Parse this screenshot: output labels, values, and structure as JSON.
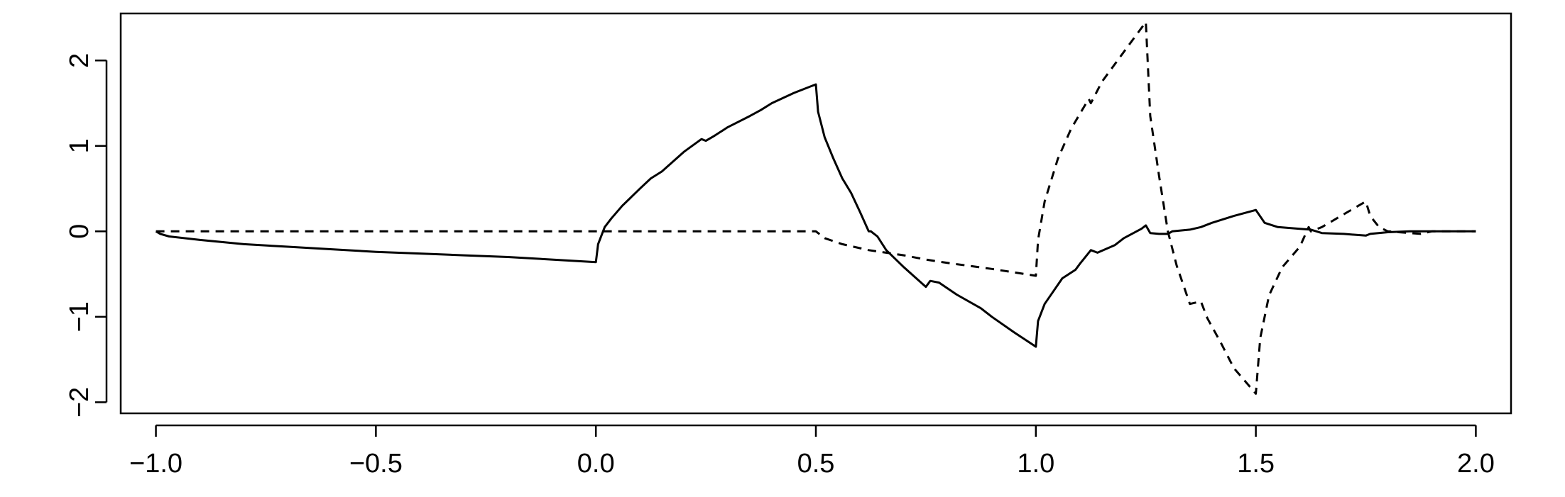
{
  "chart_data": {
    "type": "line",
    "title": "",
    "xlabel": "",
    "ylabel": "",
    "xlim": [
      -1.08,
      2.08
    ],
    "ylim": [
      -2.13,
      2.55
    ],
    "grid": false,
    "legend": "none",
    "xticks": [
      -1.0,
      -0.5,
      0.0,
      0.5,
      1.0,
      1.5,
      2.0
    ],
    "xtick_labels": [
      "−1.0",
      "−0.5",
      "0.0",
      "0.5",
      "1.0",
      "1.5",
      "2.0"
    ],
    "yticks": [
      -2,
      -1,
      0,
      1,
      2
    ],
    "ytick_labels": [
      "−2",
      "−1",
      "0",
      "1",
      "2"
    ],
    "series": [
      {
        "style": "solid",
        "color": "#000000",
        "x": [
          -1.0,
          -0.99,
          -0.97,
          -0.9,
          -0.8,
          -0.7,
          -0.6,
          -0.5,
          -0.4,
          -0.3,
          -0.2,
          -0.1,
          0.0,
          0.0,
          0.005,
          0.02,
          0.035,
          0.06,
          0.1,
          0.125,
          0.15,
          0.2,
          0.24,
          0.25,
          0.27,
          0.3,
          0.35,
          0.375,
          0.4,
          0.45,
          0.5,
          0.5,
          0.505,
          0.52,
          0.54,
          0.56,
          0.58,
          0.6,
          0.62,
          0.625,
          0.64,
          0.66,
          0.7,
          0.75,
          0.76,
          0.78,
          0.82,
          0.875,
          0.9,
          0.95,
          1.0,
          1.0,
          1.005,
          1.02,
          1.04,
          1.06,
          1.09,
          1.1,
          1.125,
          1.14,
          1.18,
          1.2,
          1.24,
          1.25,
          1.26,
          1.28,
          1.3,
          1.31,
          1.35,
          1.375,
          1.4,
          1.45,
          1.5,
          1.5,
          1.52,
          1.55,
          1.6,
          1.625,
          1.65,
          1.7,
          1.75,
          1.76,
          1.8,
          1.85,
          1.875,
          1.9,
          2.0
        ],
        "y": [
          0.0,
          -0.03,
          -0.06,
          -0.1,
          -0.15,
          -0.18,
          -0.21,
          -0.24,
          -0.26,
          -0.28,
          -0.3,
          -0.33,
          -0.36,
          -0.36,
          -0.15,
          0.05,
          0.15,
          0.3,
          0.5,
          0.62,
          0.7,
          0.93,
          1.08,
          1.06,
          1.12,
          1.22,
          1.35,
          1.42,
          1.5,
          1.62,
          1.72,
          1.72,
          1.4,
          1.1,
          0.85,
          0.62,
          0.45,
          0.23,
          0.0,
          0.0,
          -0.06,
          -0.22,
          -0.42,
          -0.65,
          -0.58,
          -0.6,
          -0.74,
          -0.9,
          -1.0,
          -1.18,
          -1.35,
          -1.35,
          -1.05,
          -0.85,
          -0.7,
          -0.55,
          -0.45,
          -0.38,
          -0.22,
          -0.25,
          -0.16,
          -0.08,
          0.03,
          0.07,
          -0.02,
          -0.03,
          -0.03,
          0.0,
          0.02,
          0.05,
          0.1,
          0.18,
          0.25,
          0.25,
          0.1,
          0.05,
          0.03,
          0.02,
          -0.02,
          -0.03,
          -0.05,
          -0.03,
          -0.01,
          0.0,
          0.0,
          0.0,
          0.0
        ]
      },
      {
        "style": "dashed",
        "color": "#000000",
        "x": [
          -1.0,
          -0.5,
          0.0,
          0.25,
          0.5,
          0.5,
          0.52,
          0.56,
          0.62,
          0.7,
          0.75,
          0.8,
          0.9,
          1.0,
          1.0,
          1.005,
          1.02,
          1.05,
          1.08,
          1.12,
          1.125,
          1.15,
          1.2,
          1.25,
          1.25,
          1.26,
          1.28,
          1.3,
          1.32,
          1.35,
          1.375,
          1.39,
          1.42,
          1.45,
          1.5,
          1.5,
          1.51,
          1.53,
          1.56,
          1.6,
          1.62,
          1.625,
          1.65,
          1.7,
          1.75,
          1.75,
          1.76,
          1.78,
          1.8,
          1.85,
          1.875,
          1.9,
          2.0
        ],
        "y": [
          0.0,
          0.0,
          0.0,
          0.0,
          0.0,
          0.0,
          -0.08,
          -0.15,
          -0.22,
          -0.28,
          -0.33,
          -0.37,
          -0.44,
          -0.52,
          -0.52,
          -0.1,
          0.35,
          0.85,
          1.2,
          1.55,
          1.5,
          1.75,
          2.1,
          2.45,
          2.45,
          1.35,
          0.65,
          0.0,
          -0.4,
          -0.85,
          -0.82,
          -1.02,
          -1.3,
          -1.6,
          -1.9,
          -1.9,
          -1.25,
          -0.75,
          -0.42,
          -0.18,
          0.05,
          0.0,
          0.05,
          0.2,
          0.35,
          0.35,
          0.18,
          0.05,
          0.0,
          -0.02,
          -0.03,
          0.0,
          0.0
        ]
      }
    ]
  }
}
